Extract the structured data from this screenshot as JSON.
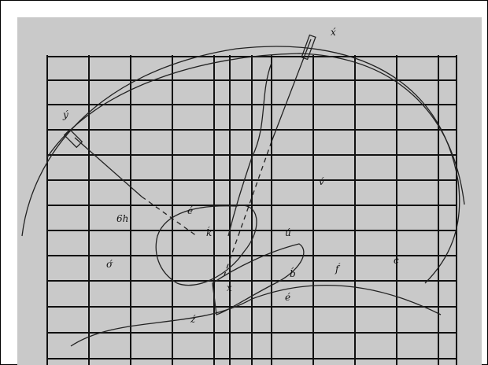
{
  "labels": [
    "x́",
    "ý",
    "v́",
    "ú",
    "f́",
    "b́",
    "é",
    "σ́",
    "ź",
    "ḱ",
    "é",
    "c",
    "6h",
    "x"
  ]
}
